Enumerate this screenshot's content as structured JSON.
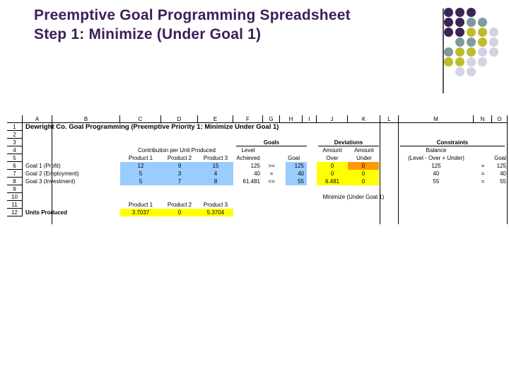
{
  "slide": {
    "title_line1": "Preemptive Goal Programming Spreadsheet",
    "title_line2": "Step 1: Minimize (Under Goal 1)"
  },
  "colors": {
    "title": "#3b1f5a",
    "dot_purple": "#3d2456",
    "dot_teal": "#7f9a9e",
    "dot_olive": "#bfbc2c",
    "dot_lavender": "#d3d3e4",
    "cell_blue": "#99ccff",
    "cell_yellow": "#ffff00",
    "cell_orange": "#ff9900"
  },
  "sheet": {
    "columns": [
      "A",
      "B",
      "C",
      "D",
      "E",
      "F",
      "G",
      "H",
      "I",
      "J",
      "K",
      "L",
      "M",
      "N",
      "O"
    ],
    "row_numbers": [
      "1",
      "2",
      "3",
      "4",
      "5",
      "6",
      "7",
      "8",
      "9",
      "10",
      "11",
      "12"
    ],
    "heading": "Dewright Co. Goal Programming (Preemptive Priority 1: Minimize Under Goal 1)",
    "goals_label": "Goals",
    "deviations_label": "Deviations",
    "constraints_label": "Constraints",
    "contribution_label": "Contribution per Unit Produced",
    "level_label": "Level",
    "level_label2": "Achieved",
    "goal_label": "Goal",
    "amount_over_1": "Amount",
    "amount_over_2": "Over",
    "amount_under_1": "Amount",
    "amount_under_2": "Under",
    "balance_1": "Balance",
    "balance_2": "(Level - Over + Under)",
    "goal_label_o": "Goal",
    "products": [
      "Product 1",
      "Product 2",
      "Product 3"
    ],
    "goals": [
      {
        "name": "Goal 1 (Profit)",
        "p1": "12",
        "p2": "9",
        "p3": "15",
        "level": "125",
        "sign": ">=",
        "goal": "125",
        "over": "0",
        "under": "0",
        "balance": "125",
        "eq": "=",
        "goal2": "125"
      },
      {
        "name": "Goal 2 (Employment)",
        "p1": "5",
        "p2": "3",
        "p3": "4",
        "level": "40",
        "sign": "=",
        "goal": "40",
        "over": "0",
        "under": "0",
        "balance": "40",
        "eq": "=",
        "goal2": "40"
      },
      {
        "name": "Goal 3 (Investment)",
        "p1": "5",
        "p2": "7",
        "p3": "8",
        "level": "61.481",
        "sign": "<=",
        "goal": "55",
        "over": "6.481",
        "under": "0",
        "balance": "55",
        "eq": "=",
        "goal2": "55"
      }
    ],
    "minimize_label": "Minimize (Under Goal 1)",
    "units_label": "Units Produced",
    "units": [
      "3.7037",
      "0",
      "5.3704"
    ]
  }
}
